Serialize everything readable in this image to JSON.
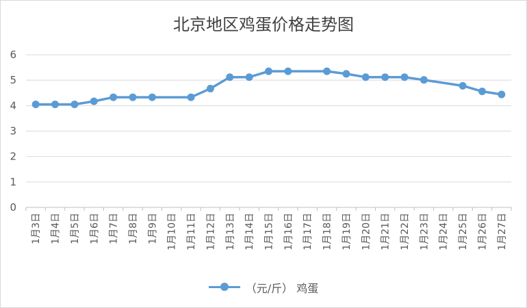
{
  "chart_data": {
    "type": "line",
    "title": "北京地区鸡蛋价格走势图",
    "categories": [
      "1月3日",
      "1月4日",
      "1月5日",
      "1月6日",
      "1月7日",
      "1月8日",
      "1月9日",
      "1月10日",
      "1月11日",
      "1月12日",
      "1月13日",
      "1月14日",
      "1月15日",
      "1月16日",
      "1月17日",
      "1月18日",
      "1月19日",
      "1月20日",
      "1月21日",
      "1月22日",
      "1月23日",
      "1月24日",
      "1月25日",
      "1月26日",
      "1月27日"
    ],
    "series": [
      {
        "name": "（元/斤） 鸡蛋",
        "values": [
          4.05,
          4.05,
          4.05,
          4.17,
          4.33,
          4.33,
          4.33,
          null,
          4.33,
          4.67,
          5.12,
          5.12,
          5.35,
          5.35,
          null,
          5.35,
          5.25,
          5.12,
          5.12,
          5.12,
          5.01,
          null,
          4.78,
          4.56,
          4.44
        ],
        "color": "#5b9bd5"
      }
    ],
    "ylim": [
      0,
      6
    ],
    "yticks": [
      0,
      1,
      2,
      3,
      4,
      5,
      6
    ],
    "grid": true,
    "legend": "bottom"
  }
}
